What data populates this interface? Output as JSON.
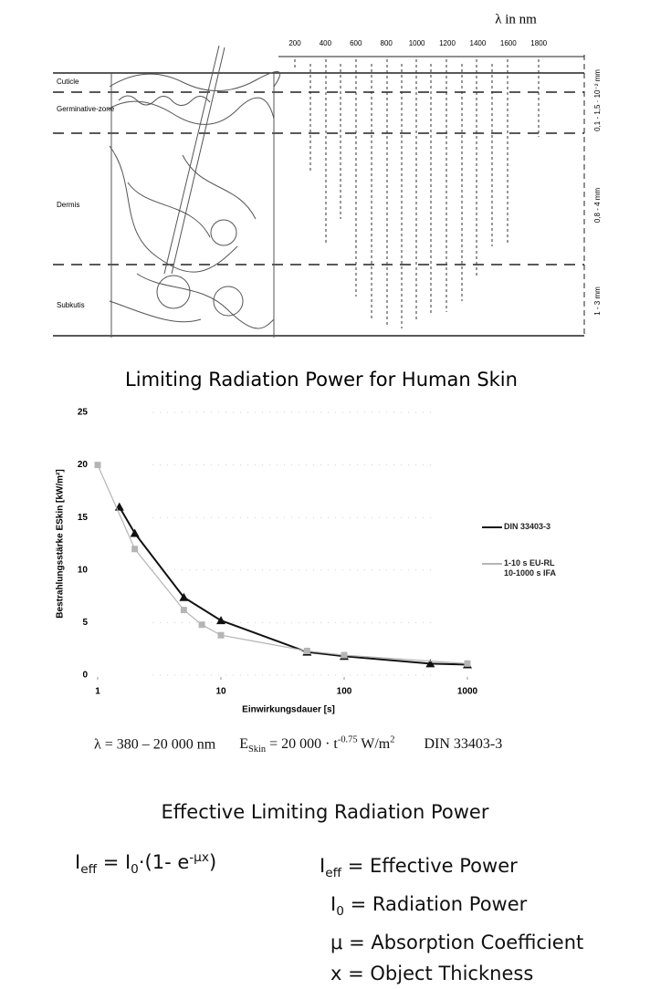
{
  "diagram": {
    "unit_label": "λ in nm",
    "wavelengths": [
      200,
      400,
      600,
      800,
      1000,
      1200,
      1400,
      1600,
      1800
    ],
    "layers": [
      "Cuticle",
      "Germinative-zone",
      "Dermis",
      "Subkutis"
    ],
    "depths": [
      "0,1 - 1,5 · 10⁻² mm",
      "0,8 - 4 mm",
      "1 - 3 mm"
    ]
  },
  "chart_data": {
    "type": "line",
    "title": "Limiting Radiation  Power for Human Skin",
    "x_label": "Einwirkungsdauer [s]",
    "y_label": "Bestrahlungsstärke ESkin [kW/m²]",
    "xlim": [
      1,
      1000
    ],
    "xticks": [
      1,
      10,
      100,
      1000
    ],
    "log_x": true,
    "ylim": [
      0,
      25
    ],
    "yticks": [
      0,
      5,
      10,
      15,
      20,
      25
    ],
    "grid": true,
    "legend": "right",
    "series": [
      {
        "name": "DIN 33403-3",
        "color": "#111111",
        "marker": "triangle",
        "x": [
          1.5,
          2,
          5,
          10,
          50,
          100,
          500,
          1000
        ],
        "values": [
          16,
          13.5,
          7.4,
          5.2,
          2.2,
          1.8,
          1.1,
          1.0
        ]
      },
      {
        "name": "1-10 s EU-RL\n10-1000 s IFA",
        "color": "#b5b5b5",
        "marker": "square",
        "x": [
          1,
          2,
          5,
          7,
          10,
          50,
          100,
          1000
        ],
        "values": [
          20,
          12,
          6.2,
          4.8,
          3.8,
          2.3,
          1.9,
          1.1
        ]
      }
    ]
  },
  "formula_line": {
    "range": "λ = 380 – 20 000 nm",
    "e": "E",
    "e_sub": "Skin",
    "expr": "= 20 000 · t",
    "exp": "-0.75",
    "unit": "W/m",
    "unit_sup": "2",
    "standard": "DIN 33403-3"
  },
  "effective": {
    "title": "Effective Limiting Radiation Power",
    "formula": {
      "i": "I",
      "sub": "eff",
      "eq": "= I",
      "sub0": "0",
      "rest": "·(1- e",
      "sup": "-μx",
      "close": ")"
    },
    "definitions": [
      {
        "sym": "I",
        "sub": "eff",
        "text": "= Effective Power"
      },
      {
        "sym": "I",
        "sub": "0",
        "text": "= Radiation Power"
      },
      {
        "sym": "μ",
        "text": "= Absorption Coefficient"
      },
      {
        "sym": "x",
        "text": "= Object Thickness"
      }
    ]
  }
}
